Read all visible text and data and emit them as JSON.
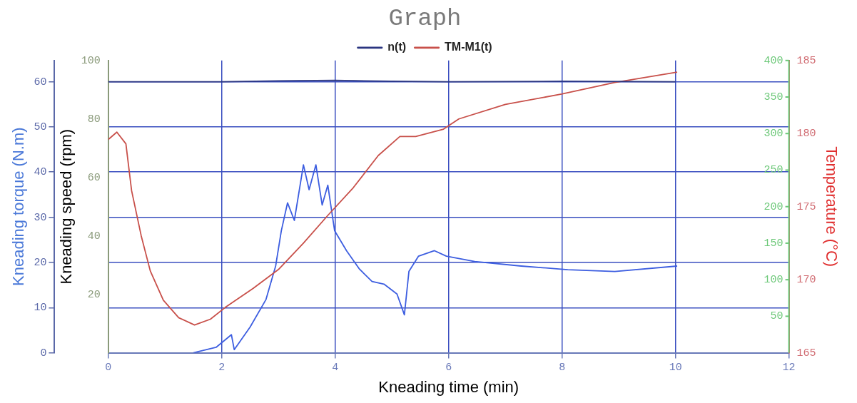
{
  "chart_data": {
    "type": "line",
    "title": "Graph",
    "xlabel": "Kneading time (min)",
    "ylabel": "Kneading torque (N.m)",
    "y3label": "Kneading speed (rpm)",
    "y2label": "Temperature (°C)",
    "xlim": [
      0,
      12
    ],
    "xticks": [
      0,
      2,
      4,
      6,
      8,
      10,
      12
    ],
    "ylim": [
      0,
      64.7
    ],
    "yticks": [
      0,
      10,
      20,
      30,
      40,
      50,
      60
    ],
    "y3lim": [
      0,
      100
    ],
    "y3ticks": [
      20,
      40,
      60,
      80,
      100
    ],
    "y2lim": [
      165,
      185
    ],
    "y2ticks": [
      165,
      170,
      175,
      180,
      185
    ],
    "annotations": [
      "50",
      "100",
      "150",
      "200",
      "250",
      "300",
      "350",
      "400"
    ],
    "grid": true,
    "legend": "top",
    "series": [
      {
        "name": "n(t)",
        "color": "#2a3580",
        "x": [
          0,
          2,
          3,
          4,
          5,
          6,
          8,
          10
        ],
        "values": [
          60,
          60,
          60.2,
          60.3,
          60.1,
          60,
          60.1,
          60
        ]
      },
      {
        "name": "TM-M1(t)",
        "color": "#c8504a",
        "x": [
          0,
          0.15,
          0.31,
          0.41,
          0.58,
          0.74,
          0.97,
          1.24,
          1.52,
          1.8,
          2.06,
          2.55,
          3.0,
          3.44,
          3.87,
          4.32,
          4.76,
          5.14,
          5.42,
          5.91,
          6.18,
          7.0,
          7.99,
          8.93,
          10.03
        ],
        "values": [
          179.6,
          180.1,
          179.3,
          176.1,
          173.0,
          170.6,
          168.6,
          167.4,
          166.9,
          167.3,
          168.1,
          169.4,
          170.7,
          172.5,
          174.4,
          176.3,
          178.5,
          179.8,
          179.8,
          180.3,
          181.0,
          182.0,
          182.7,
          183.5,
          184.2
        ],
        "axis": "y2"
      },
      {
        "color": "#3d5ee0",
        "x": [
          1.5,
          1.9,
          2.17,
          2.22,
          2.5,
          2.78,
          2.95,
          3.05,
          3.16,
          3.28,
          3.44,
          3.54,
          3.66,
          3.77,
          3.87,
          3.99,
          4.2,
          4.43,
          4.65,
          4.86,
          5.09,
          5.22,
          5.3,
          5.47,
          5.75,
          5.96,
          6.46,
          7.28,
          8.1,
          8.93,
          10.03
        ],
        "values": [
          0,
          1.2,
          4.0,
          0.7,
          5.7,
          11.8,
          19.2,
          27,
          33.2,
          29.3,
          41.6,
          36.1,
          41.6,
          32.7,
          37.1,
          27,
          22.6,
          18.5,
          15.8,
          15.2,
          13.0,
          8.4,
          18.0,
          21.4,
          22.6,
          21.4,
          20.2,
          19.2,
          18.4,
          18.0,
          19.2
        ]
      }
    ]
  }
}
